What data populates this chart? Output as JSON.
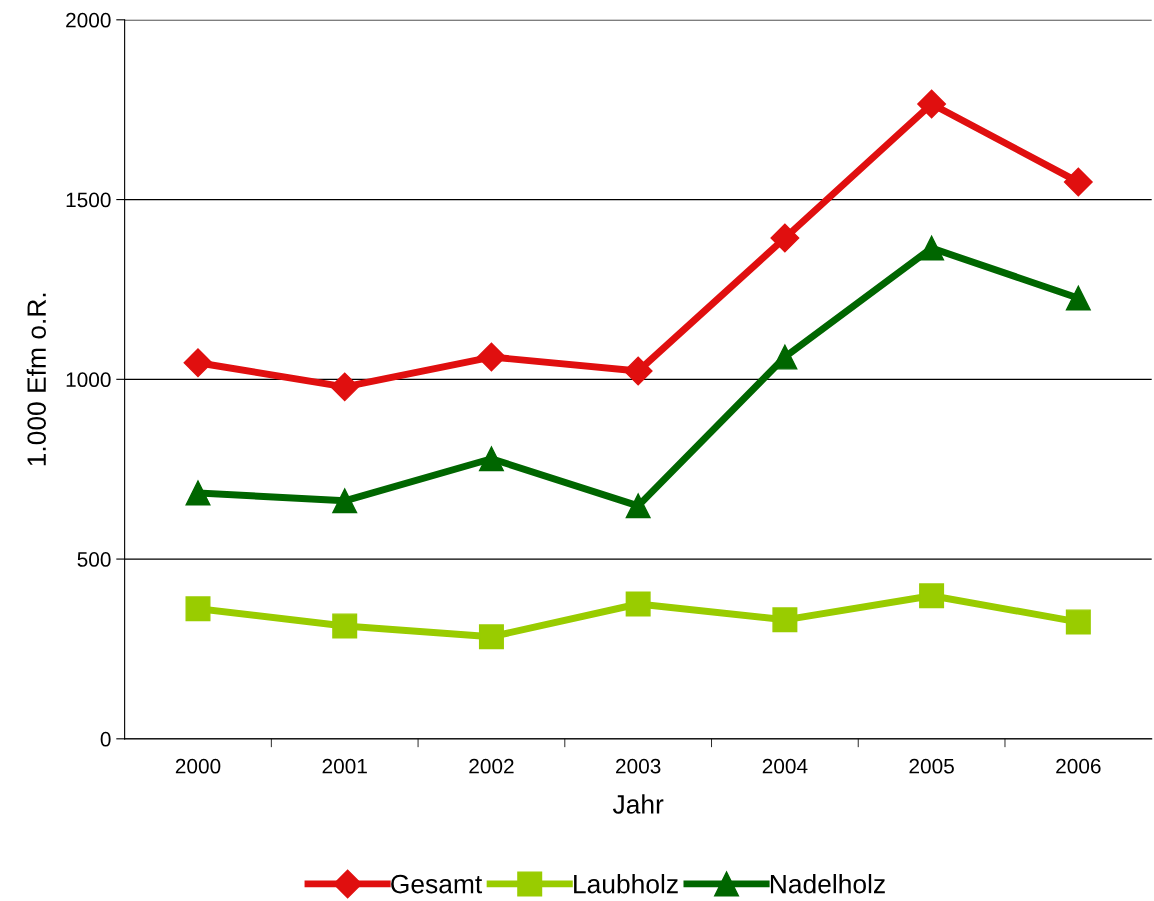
{
  "chart_data": {
    "type": "line",
    "xlabel": "Jahr",
    "ylabel": "1.000 Efm o.R.",
    "categories": [
      "2000",
      "2001",
      "2002",
      "2003",
      "2004",
      "2005",
      "2006"
    ],
    "series": [
      {
        "name": "Gesamt",
        "color": "#e00f0f",
        "marker": "diamond",
        "values": [
          1046,
          979,
          1062,
          1023,
          1393,
          1766,
          1549
        ]
      },
      {
        "name": "Laubholz",
        "color": "#99cc00",
        "marker": "square",
        "values": [
          362,
          314,
          284,
          375,
          331,
          398,
          325
        ]
      },
      {
        "name": "Nadelholz",
        "color": "#006600",
        "marker": "triangle",
        "values": [
          684,
          662,
          779,
          648,
          1062,
          1365,
          1226
        ]
      }
    ],
    "ylim": [
      0,
      2000
    ],
    "yticks": [
      0,
      500,
      1000,
      1500,
      2000
    ],
    "grid": "y",
    "legend": "bottom",
    "line_style": "solid"
  }
}
